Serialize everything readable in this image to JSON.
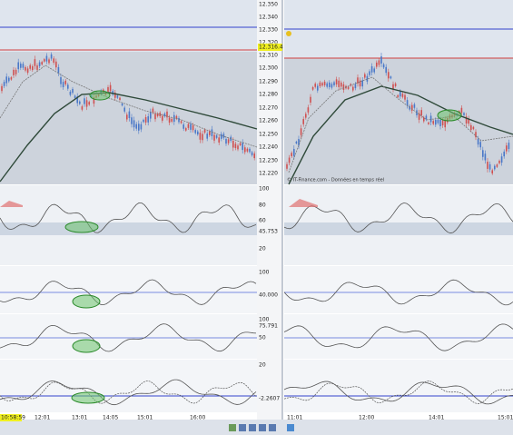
{
  "price_axis": [
    "12.350",
    "12.340",
    "12.330",
    "12.320",
    "12.316.4",
    "12.310",
    "12.300",
    "12.290",
    "12.280",
    "12.270",
    "12.260",
    "12.250",
    "12.240",
    "12.230",
    "12.220"
  ],
  "indicator_1_axis": [
    "100",
    "80",
    "60",
    "45.753",
    "20"
  ],
  "indicator_2_axis": [
    "100",
    "40.000"
  ],
  "indicator_3_axis": [
    "100",
    "75.791",
    "50"
  ],
  "indicator_4_axis": [
    "20",
    "-2.2607"
  ],
  "time_axis_left": [
    "10:58:59",
    "12:01",
    "13:01",
    "14:05",
    "15:01",
    "16:00"
  ],
  "time_axis_right": [
    "11:01",
    "12:00",
    "14:01",
    "15:01"
  ],
  "watermark": "© IT-Finance.com - Données en temps réel"
}
